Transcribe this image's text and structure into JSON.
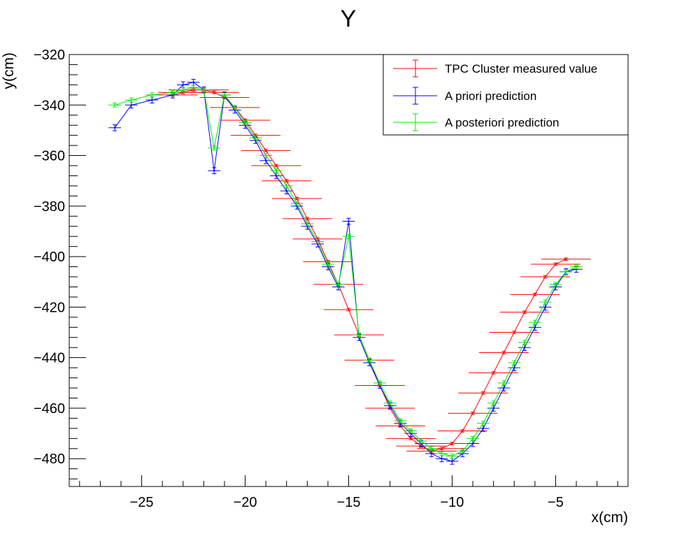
{
  "chart_data": {
    "type": "line",
    "title": "Y",
    "xlabel": "x(cm)",
    "ylabel": "y(cm)",
    "xlim": [
      -28.5,
      -1.5
    ],
    "ylim": [
      -491,
      -320
    ],
    "x_ticks": [
      -25,
      -20,
      -15,
      -10,
      -5
    ],
    "y_ticks": [
      -320,
      -340,
      -360,
      -380,
      -400,
      -420,
      -440,
      -460,
      -480
    ],
    "x_tick_labels": [
      "−25",
      "−20",
      "−15",
      "−10",
      "−5"
    ],
    "y_tick_labels": [
      "−320",
      "−340",
      "−360",
      "−380",
      "−400",
      "−420",
      "−440",
      "−460",
      "−480"
    ],
    "grid": false,
    "legend_position": "top-right",
    "series": [
      {
        "name": "TPC Cluster measured value",
        "color": "#ff0000",
        "x_error": 1.2,
        "y_error": 0.5,
        "x": [
          -23.5,
          -23.0,
          -22.5,
          -22.0,
          -21.5,
          -21.0,
          -20.5,
          -20.0,
          -19.5,
          -19.0,
          -18.5,
          -18.0,
          -17.5,
          -17.0,
          -16.5,
          -16.0,
          -15.5,
          -15.0,
          -14.5,
          -14.0,
          -13.5,
          -13.0,
          -12.5,
          -12.0,
          -11.5,
          -11.0,
          -10.5,
          -10.0,
          -9.5,
          -9.0,
          -8.5,
          -8.0,
          -7.5,
          -7.0,
          -6.5,
          -6.0,
          -5.5,
          -5.0,
          -4.5
        ],
        "y": [
          -336,
          -335,
          -334,
          -334,
          -335,
          -337,
          -341,
          -346,
          -352,
          -358,
          -364,
          -370,
          -377,
          -385,
          -393,
          -402,
          -411,
          -421,
          -431,
          -441,
          -451,
          -460,
          -467,
          -472,
          -475,
          -477,
          -476,
          -474,
          -469,
          -462,
          -454,
          -446,
          -438,
          -430,
          -422,
          -415,
          -408,
          -403,
          -401
        ]
      },
      {
        "name": "A priori prediction",
        "color": "#0000ff",
        "x_error": 0.3,
        "y_error": 1.2,
        "x": [
          -26.3,
          -25.5,
          -24.5,
          -23.5,
          -23.0,
          -22.5,
          -22.0,
          -21.5,
          -21.0,
          -20.5,
          -20.0,
          -19.5,
          -19.0,
          -18.5,
          -18.0,
          -17.5,
          -17.0,
          -16.5,
          -16.0,
          -15.5,
          -15.0,
          -14.5,
          -14.0,
          -13.5,
          -13.0,
          -12.5,
          -12.0,
          -11.5,
          -11.0,
          -10.5,
          -10.0,
          -9.5,
          -9.0,
          -8.5,
          -8.0,
          -7.5,
          -7.0,
          -6.5,
          -6.0,
          -5.5,
          -5.0,
          -4.5,
          -4.0
        ],
        "y": [
          -349,
          -340,
          -338,
          -336,
          -332,
          -331,
          -334,
          -366,
          -336,
          -342,
          -348,
          -354,
          -362,
          -368,
          -374,
          -380,
          -388,
          -395,
          -404,
          -412,
          -386,
          -432,
          -442,
          -451,
          -459,
          -466,
          -470,
          -474,
          -478,
          -480,
          -481,
          -478,
          -474,
          -468,
          -460,
          -452,
          -444,
          -436,
          -428,
          -420,
          -412,
          -406,
          -405
        ]
      },
      {
        "name": "A posteriori prediction",
        "color": "#00ee00",
        "x_error": 0.3,
        "y_error": 0.8,
        "x": [
          -26.3,
          -25.5,
          -24.5,
          -23.5,
          -23.0,
          -22.5,
          -22.0,
          -21.5,
          -21.0,
          -20.5,
          -20.0,
          -19.5,
          -19.0,
          -18.5,
          -18.0,
          -17.5,
          -17.0,
          -16.5,
          -16.0,
          -15.5,
          -15.0,
          -14.5,
          -14.0,
          -13.5,
          -13.0,
          -12.5,
          -12.0,
          -11.5,
          -11.0,
          -10.5,
          -10.0,
          -9.5,
          -9.0,
          -8.5,
          -8.0,
          -7.5,
          -7.0,
          -6.5,
          -6.0,
          -5.5,
          -5.0,
          -4.5,
          -4.0
        ],
        "y": [
          -340,
          -338,
          -336,
          -335,
          -334,
          -333,
          -334,
          -357,
          -336,
          -341,
          -347,
          -353,
          -360,
          -366,
          -372,
          -379,
          -387,
          -394,
          -403,
          -411,
          -392,
          -431,
          -441,
          -450,
          -458,
          -465,
          -469,
          -473,
          -476,
          -478,
          -479,
          -477,
          -472,
          -466,
          -458,
          -450,
          -442,
          -434,
          -426,
          -418,
          -411,
          -406,
          -404
        ]
      }
    ]
  }
}
